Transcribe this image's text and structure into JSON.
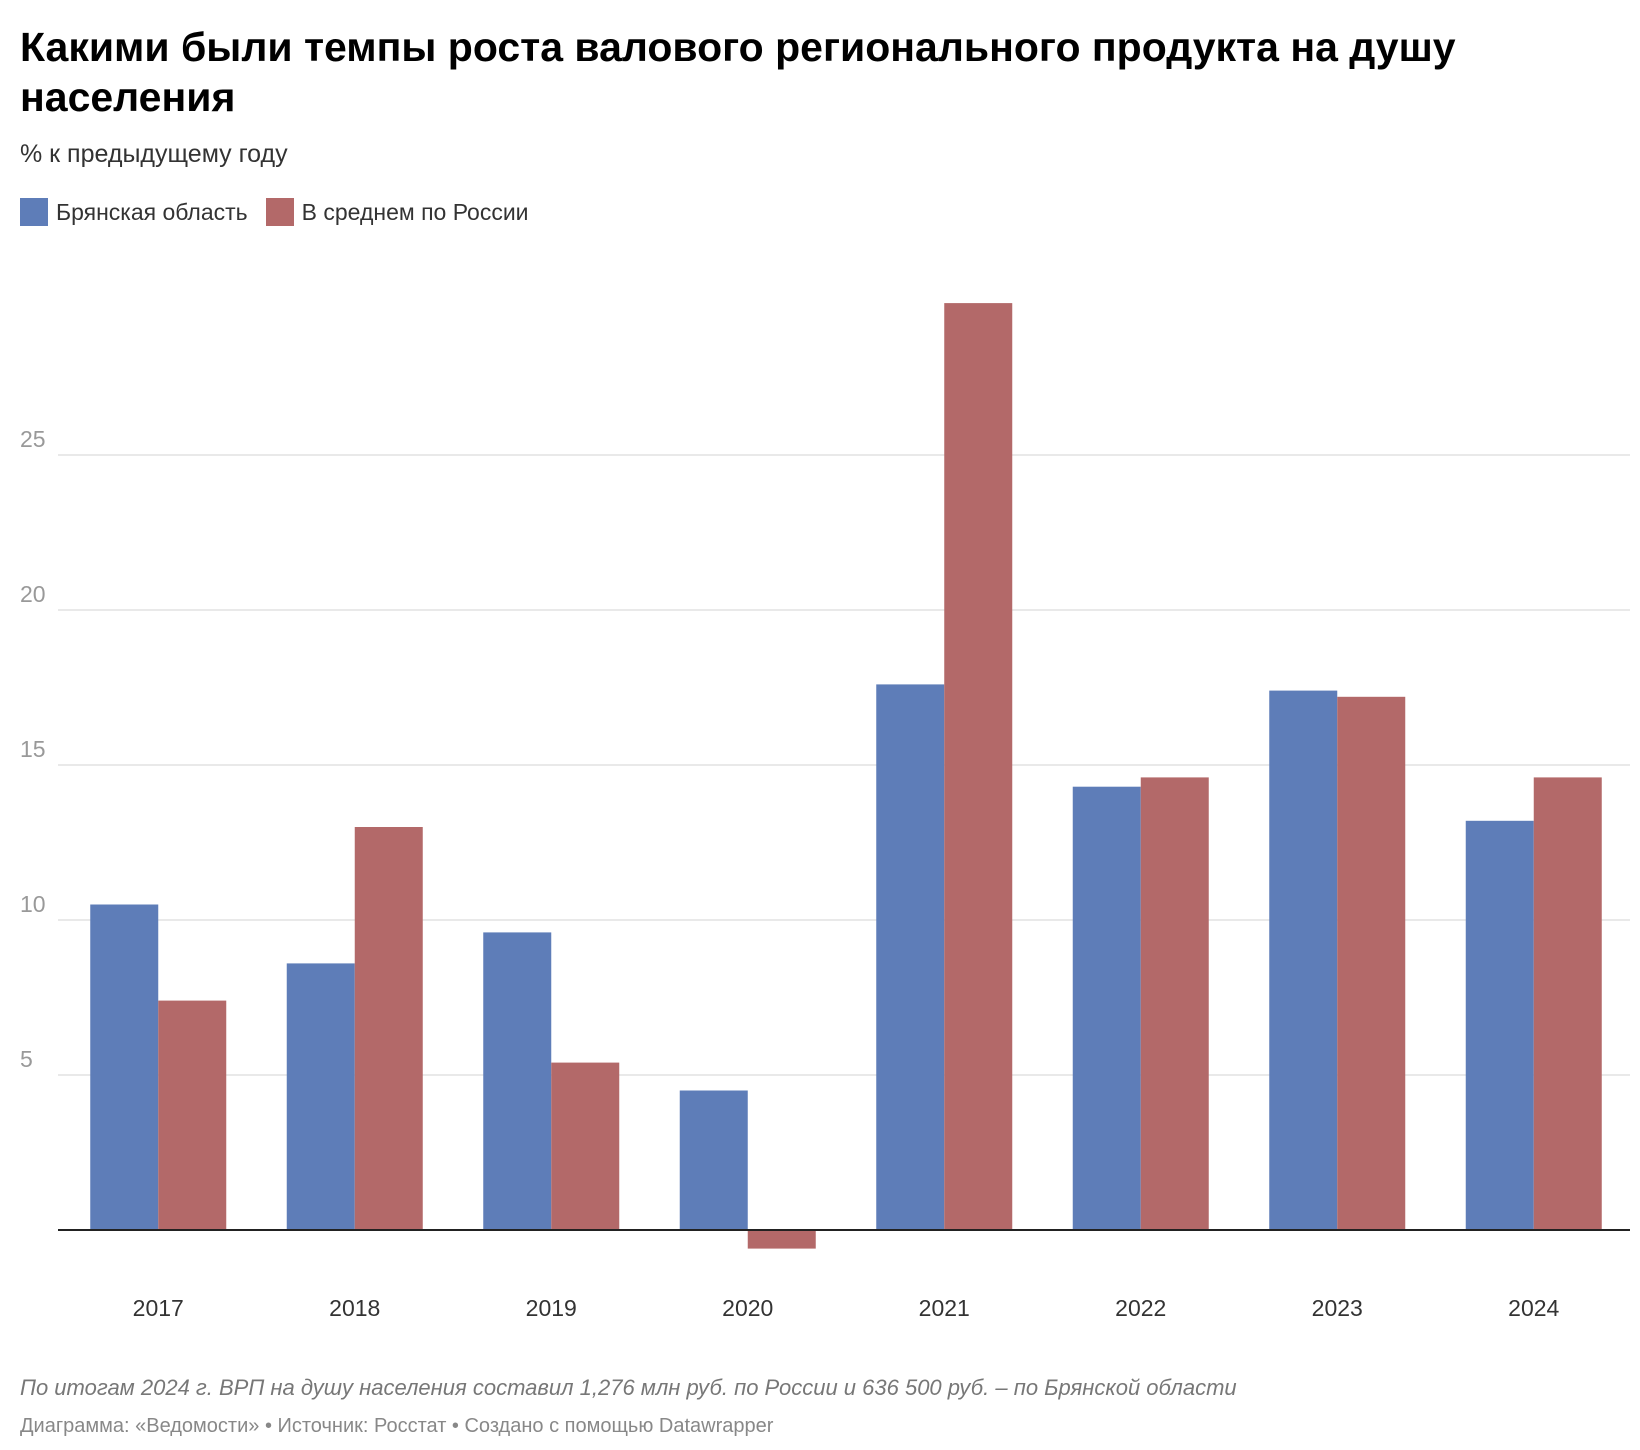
{
  "title": "Какими были темпы роста валового регионального продукта на душу населения",
  "subtitle": "% к предыдущему году",
  "legend": [
    {
      "label": "Брянская область",
      "color": "#5e7db8"
    },
    {
      "label": "В среднем по России",
      "color": "#b36969"
    }
  ],
  "chart_data": {
    "type": "bar",
    "categories": [
      "2017",
      "2018",
      "2019",
      "2020",
      "2021",
      "2022",
      "2023",
      "2024"
    ],
    "series": [
      {
        "name": "Брянская область",
        "color": "#5e7db8",
        "values": [
          10.5,
          8.6,
          9.6,
          4.5,
          17.6,
          14.3,
          17.4,
          13.2
        ]
      },
      {
        "name": "В среднем по России",
        "color": "#b36969",
        "values": [
          7.4,
          13.0,
          5.4,
          -0.6,
          29.9,
          14.6,
          17.2,
          14.6
        ]
      }
    ],
    "yticks": [
      5,
      10,
      15,
      20,
      25
    ],
    "ylim": [
      -1.5,
      32
    ],
    "grid": true,
    "legend_position": "top-left"
  },
  "note": "По итогам 2024 г. ВРП на душу населения составил 1,276 млн руб. по России и 636 500 руб. – по Брянской области",
  "footer": "Диаграмма: «Ведомости» • Источник: Росстат • Создано с помощью Datawrapper"
}
